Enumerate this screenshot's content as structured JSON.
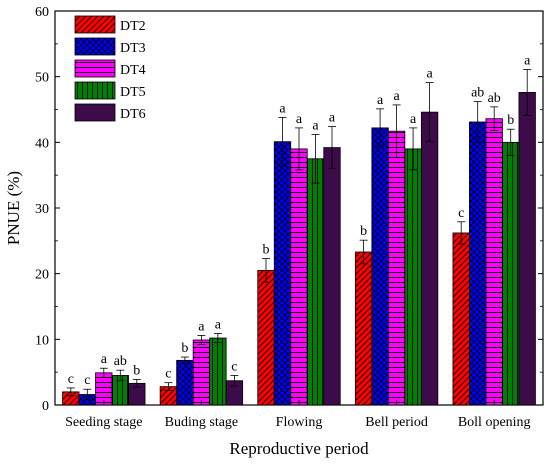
{
  "chart_data": {
    "type": "bar",
    "title": "",
    "xlabel": "Reproductive period",
    "ylabel": "PNUE (%)",
    "ylim": [
      0,
      60
    ],
    "yticks": [
      0,
      10,
      20,
      30,
      40,
      50,
      60
    ],
    "categories": [
      "Seeding stage",
      "Buding stage",
      "Flowing",
      "Bell period",
      "Boll opening"
    ],
    "legend_position": "top-left",
    "series": [
      {
        "name": "DT2",
        "color": "#ff0000",
        "pattern": "diagonal",
        "values": [
          2.0,
          2.8,
          20.5,
          23.3,
          26.2
        ],
        "errors": [
          0.6,
          0.6,
          1.8,
          1.8,
          1.7
        ],
        "letters": [
          "c",
          "c",
          "b",
          "b",
          "c"
        ]
      },
      {
        "name": "DT3",
        "color": "#0000ff",
        "pattern": "crosshatch",
        "values": [
          1.6,
          6.8,
          40.1,
          42.2,
          43.1
        ],
        "errors": [
          0.8,
          0.5,
          3.7,
          2.9,
          3.1
        ],
        "letters": [
          "c",
          "b",
          "a",
          "a",
          "ab"
        ]
      },
      {
        "name": "DT4",
        "color": "#ff00ff",
        "pattern": "horizontal",
        "values": [
          4.9,
          9.9,
          39.0,
          41.7,
          43.6
        ],
        "errors": [
          0.7,
          0.7,
          3.2,
          4.0,
          1.8
        ],
        "letters": [
          "a",
          "a",
          "a",
          "a",
          "ab"
        ]
      },
      {
        "name": "DT5",
        "color": "#008000",
        "pattern": "vertical",
        "values": [
          4.5,
          10.2,
          37.5,
          39.0,
          40.0
        ],
        "errors": [
          0.8,
          0.7,
          3.7,
          3.2,
          2.0
        ],
        "letters": [
          "ab",
          "a",
          "a",
          "a",
          "b"
        ]
      },
      {
        "name": "DT6",
        "color": "#3d0a4a",
        "pattern": "none",
        "values": [
          3.3,
          3.7,
          39.2,
          44.6,
          47.6
        ],
        "errors": [
          0.6,
          0.8,
          3.2,
          4.5,
          3.5
        ],
        "letters": [
          "b",
          "c",
          "a",
          "a",
          "a"
        ]
      }
    ]
  }
}
